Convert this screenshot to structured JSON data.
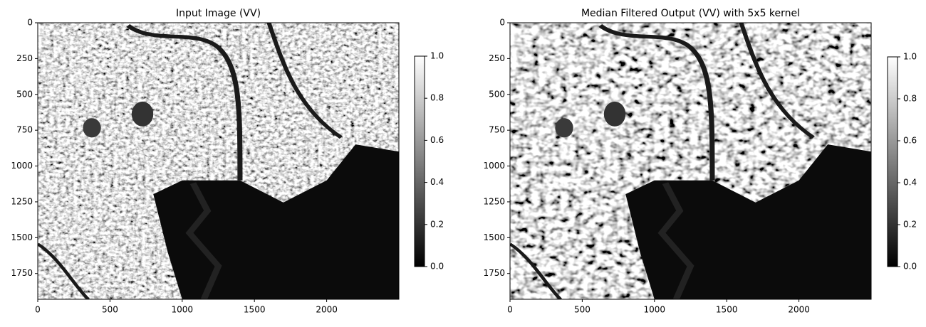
{
  "chart_data": [
    {
      "type": "image",
      "title": "Input Image (VV)",
      "colormap": "gray",
      "xlim": [
        0,
        2500
      ],
      "ylim": [
        1930,
        0
      ],
      "xticks": [
        0,
        500,
        1000,
        1500,
        2000
      ],
      "yticks": [
        0,
        250,
        500,
        750,
        1000,
        1250,
        1500,
        1750
      ],
      "clim": [
        0,
        1
      ],
      "cticks": [
        {
          "value": 0,
          "label": "0.0"
        },
        0.2,
        0.4,
        0.6,
        0.8,
        {
          "value": 1,
          "label": "1.0"
        }
      ]
    },
    {
      "type": "image",
      "title": "Median Filtered Output (VV) with 5x5 kernel",
      "colormap": "gray",
      "xlim": [
        0,
        2500
      ],
      "ylim": [
        1930,
        0
      ],
      "xticks": [
        0,
        500,
        1000,
        1500,
        2000
      ],
      "yticks": [
        0,
        250,
        500,
        750,
        1000,
        1250,
        1500,
        1750
      ],
      "clim": [
        0,
        1
      ],
      "cticks": [
        {
          "value": 0,
          "label": "0.0"
        },
        0.2,
        0.4,
        0.6,
        0.8,
        {
          "value": 1,
          "label": "1.0"
        }
      ]
    }
  ]
}
